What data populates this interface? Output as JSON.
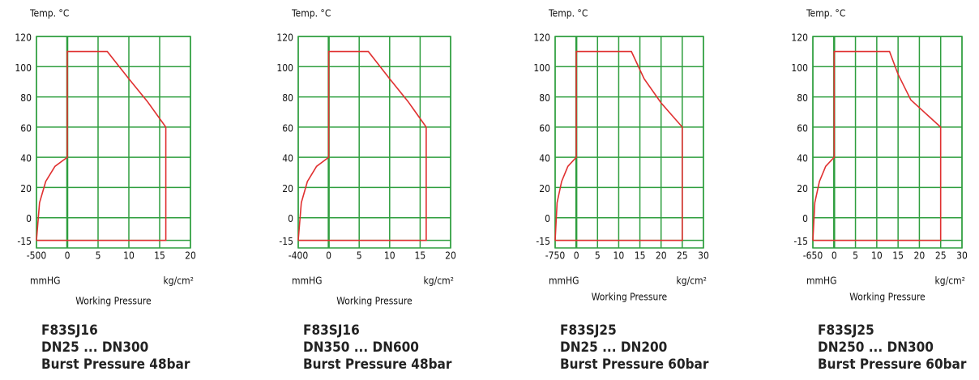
{
  "chart_data": [
    {
      "type": "line",
      "y_label": "Temp. °C",
      "x_label": "Working Pressure",
      "x_unit_left": "mmHG",
      "x_unit_right": "kg/cm²",
      "series": [
        {
          "color": "#e03030",
          "x": [
            -500,
            -450,
            -350,
            -200,
            0,
            0,
            6.5,
            10,
            13,
            16,
            16,
            -500
          ],
          "values": [
            -15,
            10,
            24,
            34,
            40,
            110,
            110,
            92,
            77,
            60,
            -15,
            -15
          ]
        }
      ],
      "xlim_vacuum": [
        -500,
        0
      ],
      "xlim": [
        0,
        20
      ],
      "xticks": [
        -500,
        0,
        5,
        10,
        15,
        20
      ],
      "ylim": [
        -20,
        120
      ],
      "yticks": [
        -15,
        0,
        20,
        40,
        60,
        80,
        100,
        120
      ],
      "grid": true,
      "grid_color": "#2e9e3e",
      "caption": [
        "F83SJ16",
        "DN25 ... DN300",
        "Burst Pressure 48bar"
      ]
    },
    {
      "type": "line",
      "y_label": "Temp. °C",
      "x_label": "Working Pressure",
      "x_unit_left": "mmHG",
      "x_unit_right": "kg/cm²",
      "series": [
        {
          "color": "#e03030",
          "x": [
            -400,
            -360,
            -280,
            -160,
            0,
            0,
            6.5,
            10,
            13,
            16,
            16,
            -400
          ],
          "values": [
            -15,
            10,
            24,
            34,
            40,
            110,
            110,
            92,
            77,
            60,
            -15,
            -15
          ]
        }
      ],
      "xlim_vacuum": [
        -400,
        0
      ],
      "xlim": [
        0,
        20
      ],
      "xticks": [
        -400,
        0,
        5,
        10,
        15,
        20
      ],
      "ylim": [
        -20,
        120
      ],
      "yticks": [
        -15,
        0,
        20,
        40,
        60,
        80,
        100,
        120
      ],
      "grid": true,
      "grid_color": "#2e9e3e",
      "caption": [
        "F83SJ16",
        "DN350 ... DN600",
        "Burst Pressure 48bar"
      ]
    },
    {
      "type": "line",
      "y_label": "Temp. °C",
      "x_label": "Working Pressure",
      "x_unit_left": "mmHG",
      "x_unit_right": "kg/cm²",
      "series": [
        {
          "color": "#e03030",
          "x": [
            -750,
            -680,
            -520,
            -300,
            0,
            0,
            13,
            16,
            20,
            25,
            25,
            -750
          ],
          "values": [
            -15,
            10,
            24,
            34,
            40,
            110,
            110,
            92,
            76,
            60,
            -15,
            -15
          ]
        }
      ],
      "xlim_vacuum": [
        -750,
        0
      ],
      "xlim": [
        0,
        30
      ],
      "xticks": [
        -750,
        0,
        5,
        10,
        15,
        20,
        25,
        30
      ],
      "ylim": [
        -20,
        120
      ],
      "yticks": [
        -15,
        0,
        20,
        40,
        60,
        80,
        100,
        120
      ],
      "grid": true,
      "grid_color": "#2e9e3e",
      "caption": [
        "F83SJ25",
        "DN25 ... DN200",
        "Burst Pressure 60bar"
      ]
    },
    {
      "type": "line",
      "y_label": "Temp. °C",
      "x_label": "Working Pressure",
      "x_unit_left": "mmHG",
      "x_unit_right": "kg/cm²",
      "series": [
        {
          "color": "#e03030",
          "x": [
            -650,
            -590,
            -450,
            -260,
            0,
            0,
            13,
            15,
            18,
            25,
            25,
            -650
          ],
          "values": [
            -15,
            10,
            24,
            34,
            40,
            110,
            110,
            95,
            78,
            60,
            -15,
            -15
          ]
        }
      ],
      "xlim_vacuum": [
        -650,
        0
      ],
      "xlim": [
        0,
        30
      ],
      "xticks": [
        -650,
        0,
        5,
        10,
        15,
        20,
        25,
        30
      ],
      "ylim": [
        -20,
        120
      ],
      "yticks": [
        -15,
        0,
        20,
        40,
        60,
        80,
        100,
        120
      ],
      "grid": true,
      "grid_color": "#2e9e3e",
      "caption": [
        "F83SJ25",
        "DN250 ... DN300",
        "Burst Pressure 60bar"
      ]
    }
  ]
}
